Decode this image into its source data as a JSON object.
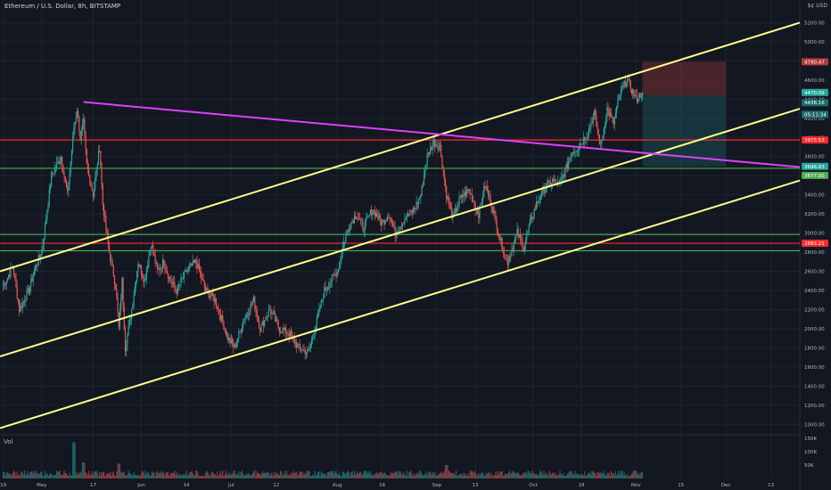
{
  "header": {
    "symbol_title": "Ethereum / U.S. Dollar, 8h, BITSTAMP",
    "currency": "$¢ USD"
  },
  "volume_label": "Vol",
  "colors": {
    "background": "#131722",
    "grid": "#1e222d",
    "candle_up": "#26a69a",
    "candle_down": "#ef5350",
    "channel_line": "#ffff88",
    "magenta_trendline": "#e040fb",
    "resistance_red": "#ff2a2a",
    "support_green": "#4caf50",
    "stop_zone": "#b23b3b",
    "target_zone": "#1c6b6b"
  },
  "chart_data": {
    "type": "candlestick",
    "title": "Ethereum / U.S. Dollar, 8h, BITSTAMP",
    "price_axis": {
      "ticks": [
        1000,
        1200,
        1400,
        1600,
        1800,
        2000,
        2200,
        2400,
        2600,
        2800,
        3000,
        3200,
        3400,
        3600,
        3800,
        4000,
        4200,
        4400,
        4600,
        4800,
        5000,
        5200
      ],
      "tick_labels": [
        "1000.00",
        "1200.00",
        "1400.00",
        "1600.00",
        "1800.00",
        "2000.00",
        "2200.00",
        "2400.00",
        "2600.00",
        "2800.00",
        "3000.00",
        "3200.00",
        "3400.00",
        "3600.00",
        "3800.00",
        "4000.00",
        "4200.00",
        "4400.00",
        "4600.00",
        "4800.00",
        "5000.00",
        "5200.00"
      ],
      "range": [
        900,
        5400
      ]
    },
    "time_axis": {
      "labels": [
        "19",
        "May",
        "17",
        "Jun",
        "14",
        "Jul",
        "12",
        "Aug",
        "16",
        "Sep",
        "13",
        "Oct",
        "18",
        "Nov",
        "15",
        "Dec",
        "13"
      ],
      "day_offsets": [
        0,
        12,
        28,
        43,
        57,
        71,
        85,
        104,
        118,
        135,
        147,
        165,
        180,
        197,
        211,
        225,
        239
      ],
      "day_range": [
        -1,
        248
      ]
    },
    "volume_axis": {
      "ticks": [
        50000,
        100000,
        150000
      ],
      "tick_labels": [
        "50K",
        "100K",
        "150K"
      ],
      "range": [
        0,
        160000
      ]
    },
    "price_path": [
      [
        0,
        2450
      ],
      [
        3,
        2650
      ],
      [
        5,
        2200
      ],
      [
        8,
        2400
      ],
      [
        10,
        2650
      ],
      [
        12,
        2800
      ],
      [
        15,
        3600
      ],
      [
        18,
        3800
      ],
      [
        20,
        3400
      ],
      [
        22,
        4100
      ],
      [
        23,
        4300
      ],
      [
        24,
        4000
      ],
      [
        25,
        4150
      ],
      [
        26,
        3700
      ],
      [
        28,
        3400
      ],
      [
        30,
        3900
      ],
      [
        31,
        3300
      ],
      [
        33,
        2800
      ],
      [
        35,
        2450
      ],
      [
        36,
        2000
      ],
      [
        37,
        2500
      ],
      [
        38,
        1800
      ],
      [
        40,
        2200
      ],
      [
        42,
        2700
      ],
      [
        44,
        2500
      ],
      [
        46,
        2900
      ],
      [
        48,
        2600
      ],
      [
        50,
        2700
      ],
      [
        52,
        2500
      ],
      [
        54,
        2400
      ],
      [
        57,
        2600
      ],
      [
        60,
        2700
      ],
      [
        63,
        2400
      ],
      [
        66,
        2300
      ],
      [
        70,
        1900
      ],
      [
        72,
        1800
      ],
      [
        75,
        2100
      ],
      [
        78,
        2300
      ],
      [
        80,
        2000
      ],
      [
        83,
        2200
      ],
      [
        86,
        2000
      ],
      [
        89,
        1950
      ],
      [
        92,
        1800
      ],
      [
        95,
        1750
      ],
      [
        97,
        2000
      ],
      [
        100,
        2400
      ],
      [
        104,
        2600
      ],
      [
        106,
        2900
      ],
      [
        108,
        3100
      ],
      [
        110,
        3200
      ],
      [
        112,
        3050
      ],
      [
        115,
        3250
      ],
      [
        118,
        3100
      ],
      [
        120,
        3200
      ],
      [
        122,
        3000
      ],
      [
        125,
        3150
      ],
      [
        128,
        3250
      ],
      [
        130,
        3400
      ],
      [
        132,
        3800
      ],
      [
        134,
        3950
      ],
      [
        136,
        3900
      ],
      [
        138,
        3400
      ],
      [
        140,
        3150
      ],
      [
        142,
        3350
      ],
      [
        145,
        3450
      ],
      [
        148,
        3200
      ],
      [
        150,
        3500
      ],
      [
        152,
        3300
      ],
      [
        155,
        2900
      ],
      [
        157,
        2700
      ],
      [
        160,
        3000
      ],
      [
        162,
        2850
      ],
      [
        164,
        3100
      ],
      [
        166,
        3300
      ],
      [
        168,
        3450
      ],
      [
        171,
        3550
      ],
      [
        173,
        3500
      ],
      [
        175,
        3650
      ],
      [
        177,
        3850
      ],
      [
        179,
        3900
      ],
      [
        182,
        4050
      ],
      [
        184,
        4250
      ],
      [
        186,
        3900
      ],
      [
        188,
        4300
      ],
      [
        190,
        4150
      ],
      [
        192,
        4450
      ],
      [
        194,
        4600
      ],
      [
        195,
        4550
      ],
      [
        197,
        4400
      ],
      [
        199,
        4470
      ]
    ],
    "volume_spikes": [
      {
        "day": 22,
        "value": 135000
      },
      {
        "day": 25,
        "value": 60000
      },
      {
        "day": 36,
        "value": 55000
      },
      {
        "day": 138,
        "value": 50000
      }
    ],
    "price_labels": [
      {
        "text": "4790.47",
        "value": 4790.47,
        "color": "#b23b3b"
      },
      {
        "text": "4470.09",
        "value": 4470.09,
        "color": "#26a69a"
      },
      {
        "text": "4438.16",
        "value": 4438.16,
        "color": "#1c6b6b"
      },
      {
        "text": "05:11:34",
        "value": 4390,
        "color": "#1c6b6b"
      },
      {
        "text": "3973.53",
        "value": 3973.53,
        "color": "#ff2a2a"
      },
      {
        "text": "3696.83",
        "value": 3696.83,
        "color": "#26a69a"
      },
      {
        "text": "3677.00",
        "value": 3677.0,
        "color": "#4caf50"
      },
      {
        "text": "2893.21",
        "value": 2893.21,
        "color": "#ff2a2a"
      }
    ],
    "horizontal_levels": [
      {
        "value": 3973.53,
        "color": "#ff2a2a"
      },
      {
        "value": 3677.0,
        "color": "#4caf50"
      },
      {
        "value": 2985.0,
        "color": "#4caf50"
      },
      {
        "value": 2893.21,
        "color": "#ff2a2a"
      },
      {
        "value": 2815.0,
        "color": "#4caf50"
      }
    ],
    "trendlines": [
      {
        "color": "#ffff88",
        "from": {
          "day": -1,
          "price": 2600
        },
        "to": {
          "day": 248,
          "price": 5200
        }
      },
      {
        "color": "#ffff88",
        "from": {
          "day": -1,
          "price": 1710
        },
        "to": {
          "day": 248,
          "price": 4300
        }
      },
      {
        "color": "#ffff88",
        "from": {
          "day": -1,
          "price": 960
        },
        "to": {
          "day": 248,
          "price": 3550
        }
      },
      {
        "color": "#e040fb",
        "from": {
          "day": 25,
          "price": 4370
        },
        "to": {
          "day": 248,
          "price": 3690
        }
      }
    ],
    "position_box": {
      "entry": 4438.16,
      "stop": 4790.47,
      "target": 3696.83,
      "from_day": 199,
      "to_day": 225
    }
  }
}
